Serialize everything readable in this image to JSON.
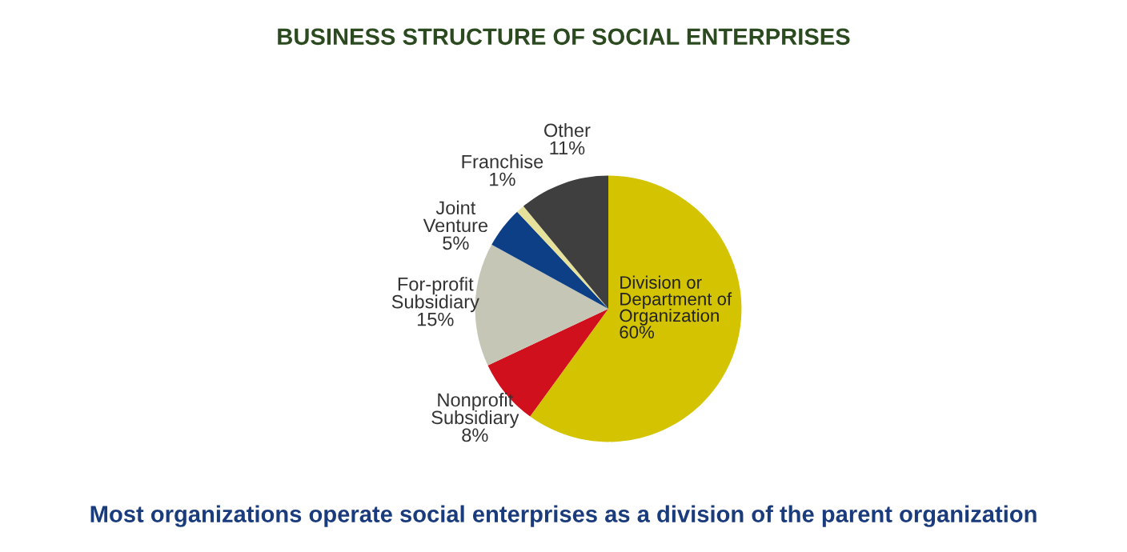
{
  "chart_data": {
    "type": "pie",
    "title": "BUSINESS STRUCTURE OF SOCIAL ENTERPRISES",
    "categories": [
      "Division or\nDepartment of\nOrganization",
      "Nonprofit\nSubsidiary",
      "For-profit\nSubsidiary",
      "Joint\nVenture",
      "Franchise",
      "Other"
    ],
    "values": [
      60,
      8,
      15,
      5,
      1,
      11
    ],
    "colors": [
      "#d3c300",
      "#d0101c",
      "#c6c6b6",
      "#0d3f86",
      "#e6e29c",
      "#3f3f3f"
    ],
    "value_labels": [
      "60%",
      "8%",
      "15%",
      "5%",
      "1%",
      "11%"
    ],
    "annotations": [
      "Most organizations operate social enterprises as a division of the parent organization"
    ]
  }
}
